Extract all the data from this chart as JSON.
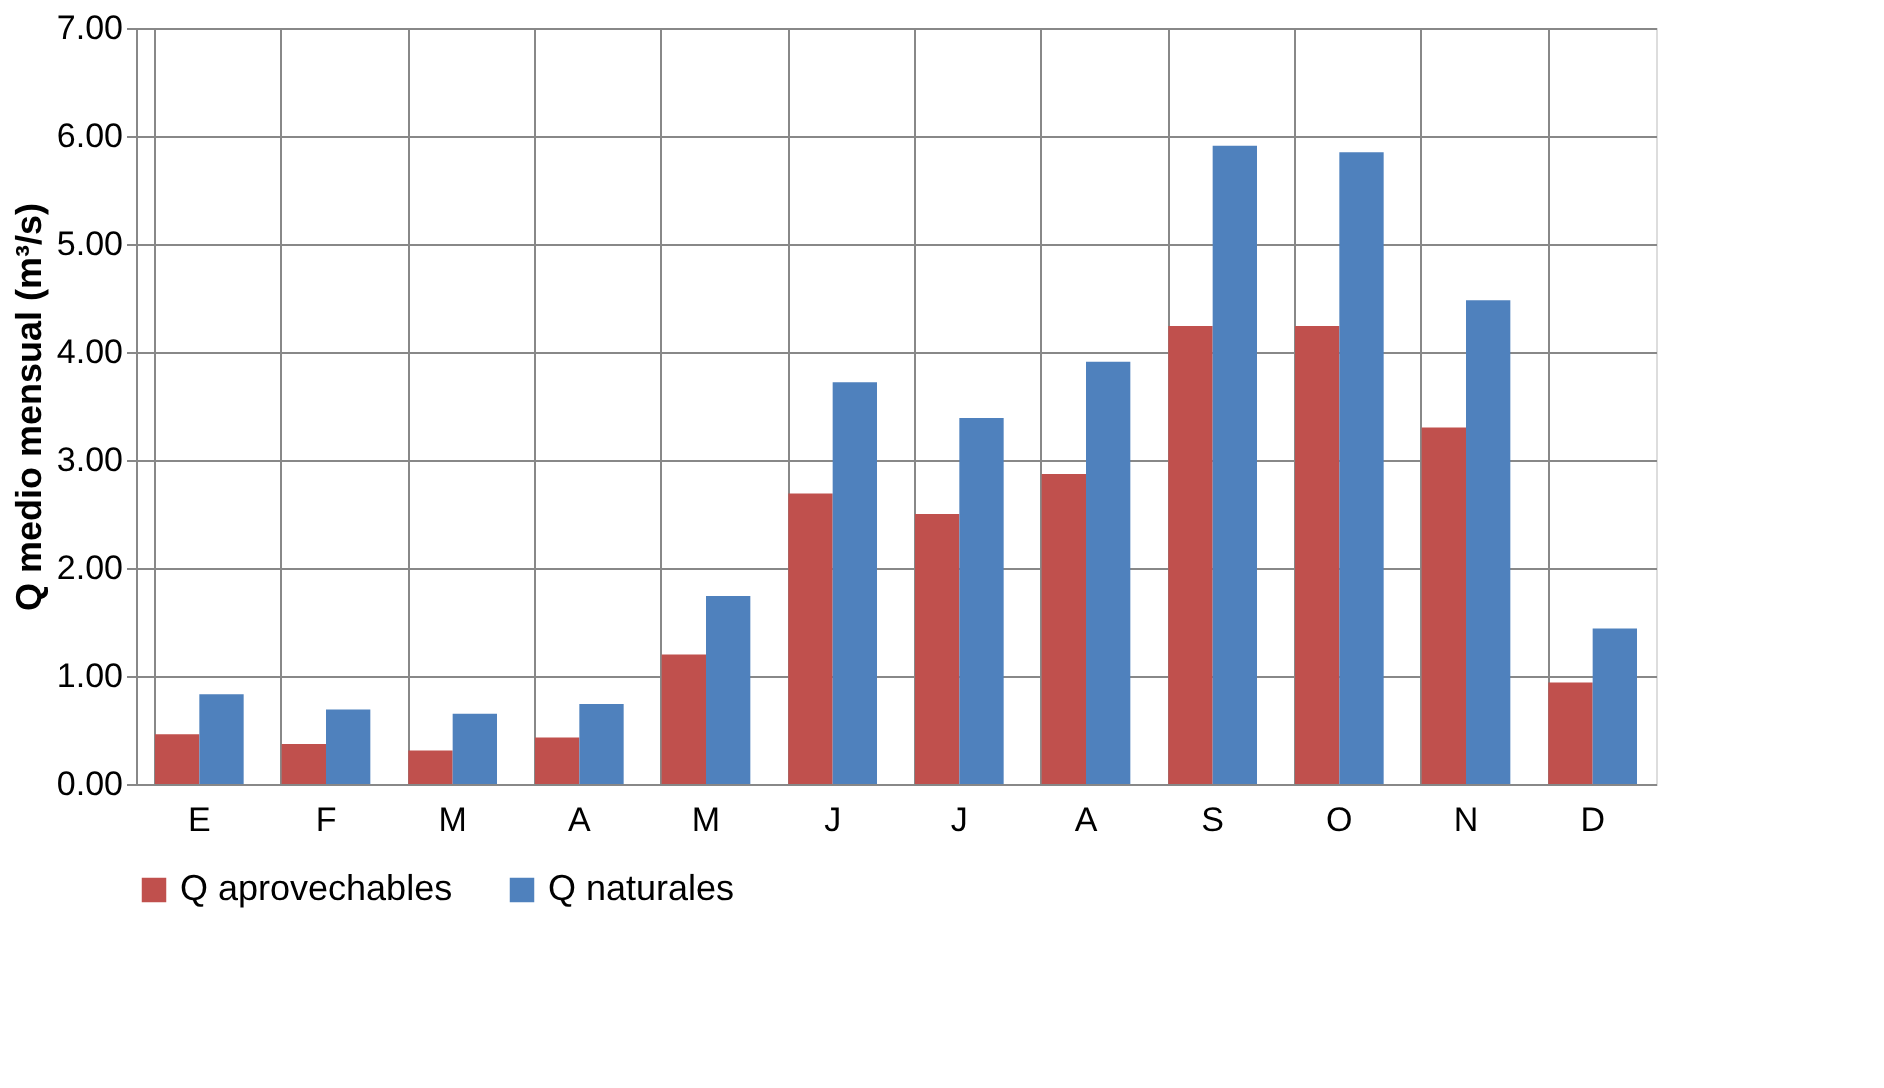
{
  "chart_data": {
    "type": "bar",
    "ylabel": "Q medio mensual (m³/s)",
    "categories": [
      "E",
      "F",
      "M",
      "A",
      "M",
      "J",
      "J",
      "A",
      "S",
      "O",
      "N",
      "D"
    ],
    "series": [
      {
        "name": "Q aprovechables",
        "color": "#c0504d",
        "values": [
          0.46,
          0.37,
          0.31,
          0.43,
          1.2,
          2.69,
          2.5,
          2.87,
          4.24,
          4.24,
          3.3,
          0.94
        ]
      },
      {
        "name": "Q naturales",
        "color": "#4f81bd",
        "values": [
          0.83,
          0.69,
          0.65,
          0.74,
          1.74,
          3.72,
          3.39,
          3.91,
          5.91,
          5.85,
          4.48,
          1.44
        ]
      }
    ],
    "ylim": [
      0,
      7
    ],
    "yticks": [
      {
        "value": 0,
        "label": "0.00"
      },
      {
        "value": 1,
        "label": "1.00"
      },
      {
        "value": 2,
        "label": "2.00"
      },
      {
        "value": 3,
        "label": "3.00"
      },
      {
        "value": 4,
        "label": "4.00"
      },
      {
        "value": 5,
        "label": "5.00"
      },
      {
        "value": 6,
        "label": "6.00"
      },
      {
        "value": 7,
        "label": "7.00"
      }
    ],
    "grid": true,
    "legend": "bottom"
  }
}
